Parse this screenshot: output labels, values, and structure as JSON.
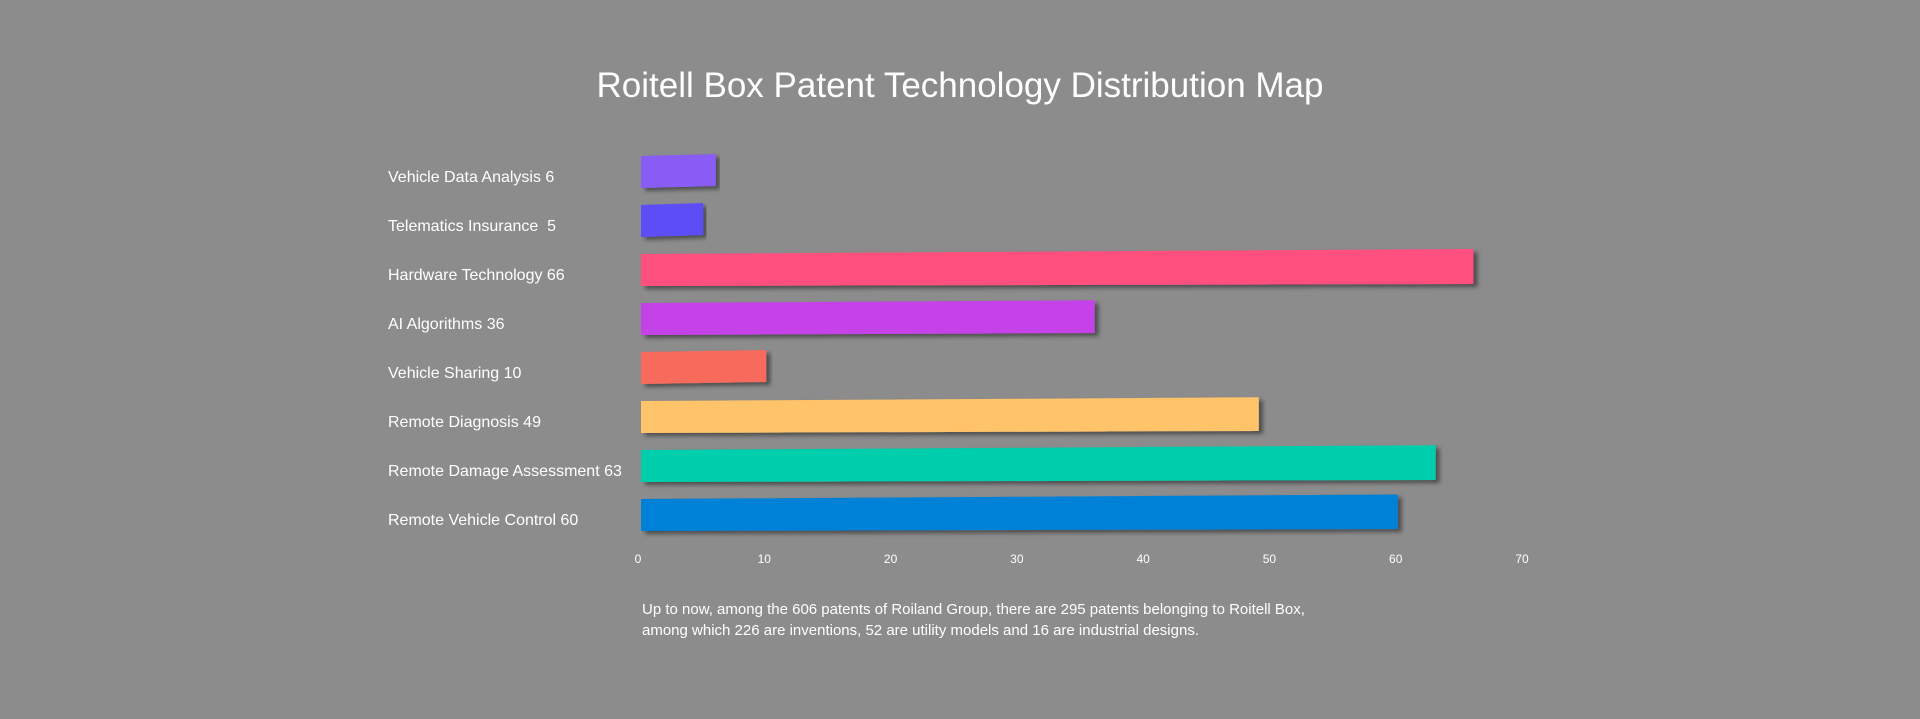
{
  "chart_data": {
    "type": "bar",
    "orientation": "horizontal",
    "title": "Roitell Box Patent Technology Distribution Map",
    "categories": [
      "Vehicle Data Analysis 6",
      "Telematics Insurance  5",
      "Hardware Technology 66",
      "AI Algorithms 36",
      "Vehicle Sharing 10",
      "Remote Diagnosis 49",
      "Remote Damage Assessment 63",
      "Remote Vehicle Control 60"
    ],
    "values": [
      6,
      5,
      66,
      36,
      10,
      49,
      63,
      60
    ],
    "colors": [
      "#8a5cf6",
      "#5b4df6",
      "#ff4f7e",
      "#c543e8",
      "#f86a5c",
      "#ffc469",
      "#00cfad",
      "#0081d8"
    ],
    "xlim": [
      0,
      70
    ],
    "xticks": [
      "0",
      "10",
      "20",
      "30",
      "40",
      "50",
      "60",
      "70"
    ],
    "xlabel": "",
    "ylabel": "",
    "grid": false,
    "legend": "none"
  },
  "note": {
    "line1": "Up to now, among the 606 patents of Roiland Group, there are 295 patents belonging to Roitell Box,",
    "line2": "among which 226 are inventions, 52 are utility models and 16 are industrial designs."
  }
}
